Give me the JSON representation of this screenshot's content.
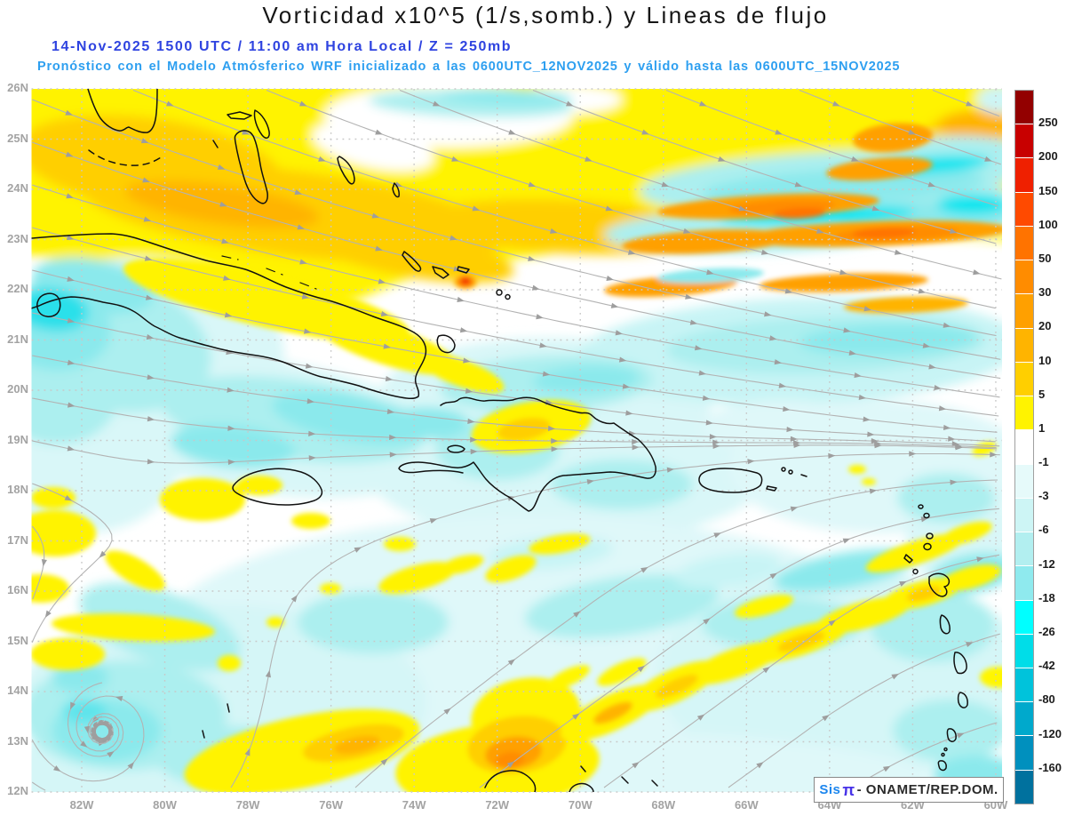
{
  "header": {
    "title": "Vorticidad x10^5 (1/s,somb.) y Lineas de flujo",
    "valid_line": "14-Nov-2025  1500 UTC / 11:00 am Hora Local / Z = 250mb",
    "model_line": "Pronóstico con el Modelo Atmósferico WRF inicializado a las 0600UTC_12NOV2025 y válido hasta las  0600UTC_15NOV2025"
  },
  "map": {
    "lat_labels": [
      "26N",
      "25N",
      "24N",
      "23N",
      "22N",
      "21N",
      "20N",
      "19N",
      "18N",
      "17N",
      "16N",
      "15N",
      "14N",
      "13N",
      "12N"
    ],
    "lon_labels": [
      "82W",
      "80W",
      "78W",
      "76W",
      "74W",
      "72W",
      "70W",
      "68W",
      "66W",
      "64W",
      "62W",
      "60W"
    ]
  },
  "colorbar": {
    "tick_labels": [
      "250",
      "200",
      "150",
      "100",
      "50",
      "30",
      "20",
      "10",
      "5",
      "1",
      "-1",
      "-3",
      "-6",
      "-12",
      "-18",
      "-26",
      "-42",
      "-80",
      "-120",
      "-160"
    ],
    "segment_colors_top_to_bottom": [
      "#930000",
      "#C80000",
      "#EF2000",
      "#FF4A00",
      "#FF7300",
      "#FF8C00",
      "#FFA000",
      "#FFB400",
      "#FFCF00",
      "#FFF300",
      "#FFFFFF",
      "#E6FAFA",
      "#CDF5F5",
      "#B2EFF0",
      "#8FEAEE",
      "#00FFFF",
      "#00DDE8",
      "#00C3DB",
      "#00A9CC",
      "#0090BE",
      "#00719E"
    ]
  },
  "attribution": {
    "brand": "Sis",
    "pi": "π",
    "rest": "- ONAMET/REP.DOM."
  }
}
